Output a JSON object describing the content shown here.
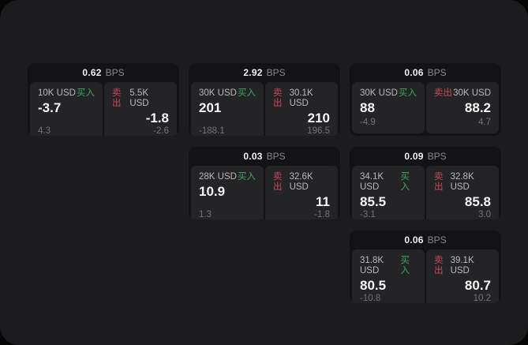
{
  "labels": {
    "buy": "买入",
    "sell": "卖出",
    "bps": "BPS"
  },
  "colors": {
    "buy_green": "#3fa55c",
    "sell_red": "#c7485c",
    "panel_bg": "#1c1c1e",
    "card_bg": "#131315",
    "tile_bg": "#242427"
  },
  "cards": [
    {
      "row": 1,
      "col": 1,
      "spread": "0.62",
      "buy": {
        "size": "10K USD",
        "price": "-3.7",
        "delta": "4.3"
      },
      "sell": {
        "size": "5.5K USD",
        "price": "-1.8",
        "delta": "-2.6"
      }
    },
    {
      "row": 1,
      "col": 2,
      "spread": "2.92",
      "buy": {
        "size": "30K USD",
        "price": "201",
        "delta": "-188.1"
      },
      "sell": {
        "size": "30.1K USD",
        "price": "210",
        "delta": "196.5"
      }
    },
    {
      "row": 1,
      "col": 3,
      "spread": "0.06",
      "buy": {
        "size": "30K USD",
        "price": "88",
        "delta": "-4.9"
      },
      "sell": {
        "size": "30K USD",
        "price": "88.2",
        "delta": "4.7"
      }
    },
    {
      "row": 2,
      "col": 2,
      "spread": "0.03",
      "buy": {
        "size": "28K USD",
        "price": "10.9",
        "delta": "1.3"
      },
      "sell": {
        "size": "32.6K USD",
        "price": "11",
        "delta": "-1.8"
      }
    },
    {
      "row": 2,
      "col": 3,
      "spread": "0.09",
      "buy": {
        "size": "34.1K USD",
        "price": "85.5",
        "delta": "-3.1"
      },
      "sell": {
        "size": "32.8K USD",
        "price": "85.8",
        "delta": "3.0"
      }
    },
    {
      "row": 3,
      "col": 3,
      "spread": "0.06",
      "buy": {
        "size": "31.8K USD",
        "price": "80.5",
        "delta": "-10.8"
      },
      "sell": {
        "size": "39.1K USD",
        "price": "80.7",
        "delta": "10.2"
      }
    }
  ]
}
